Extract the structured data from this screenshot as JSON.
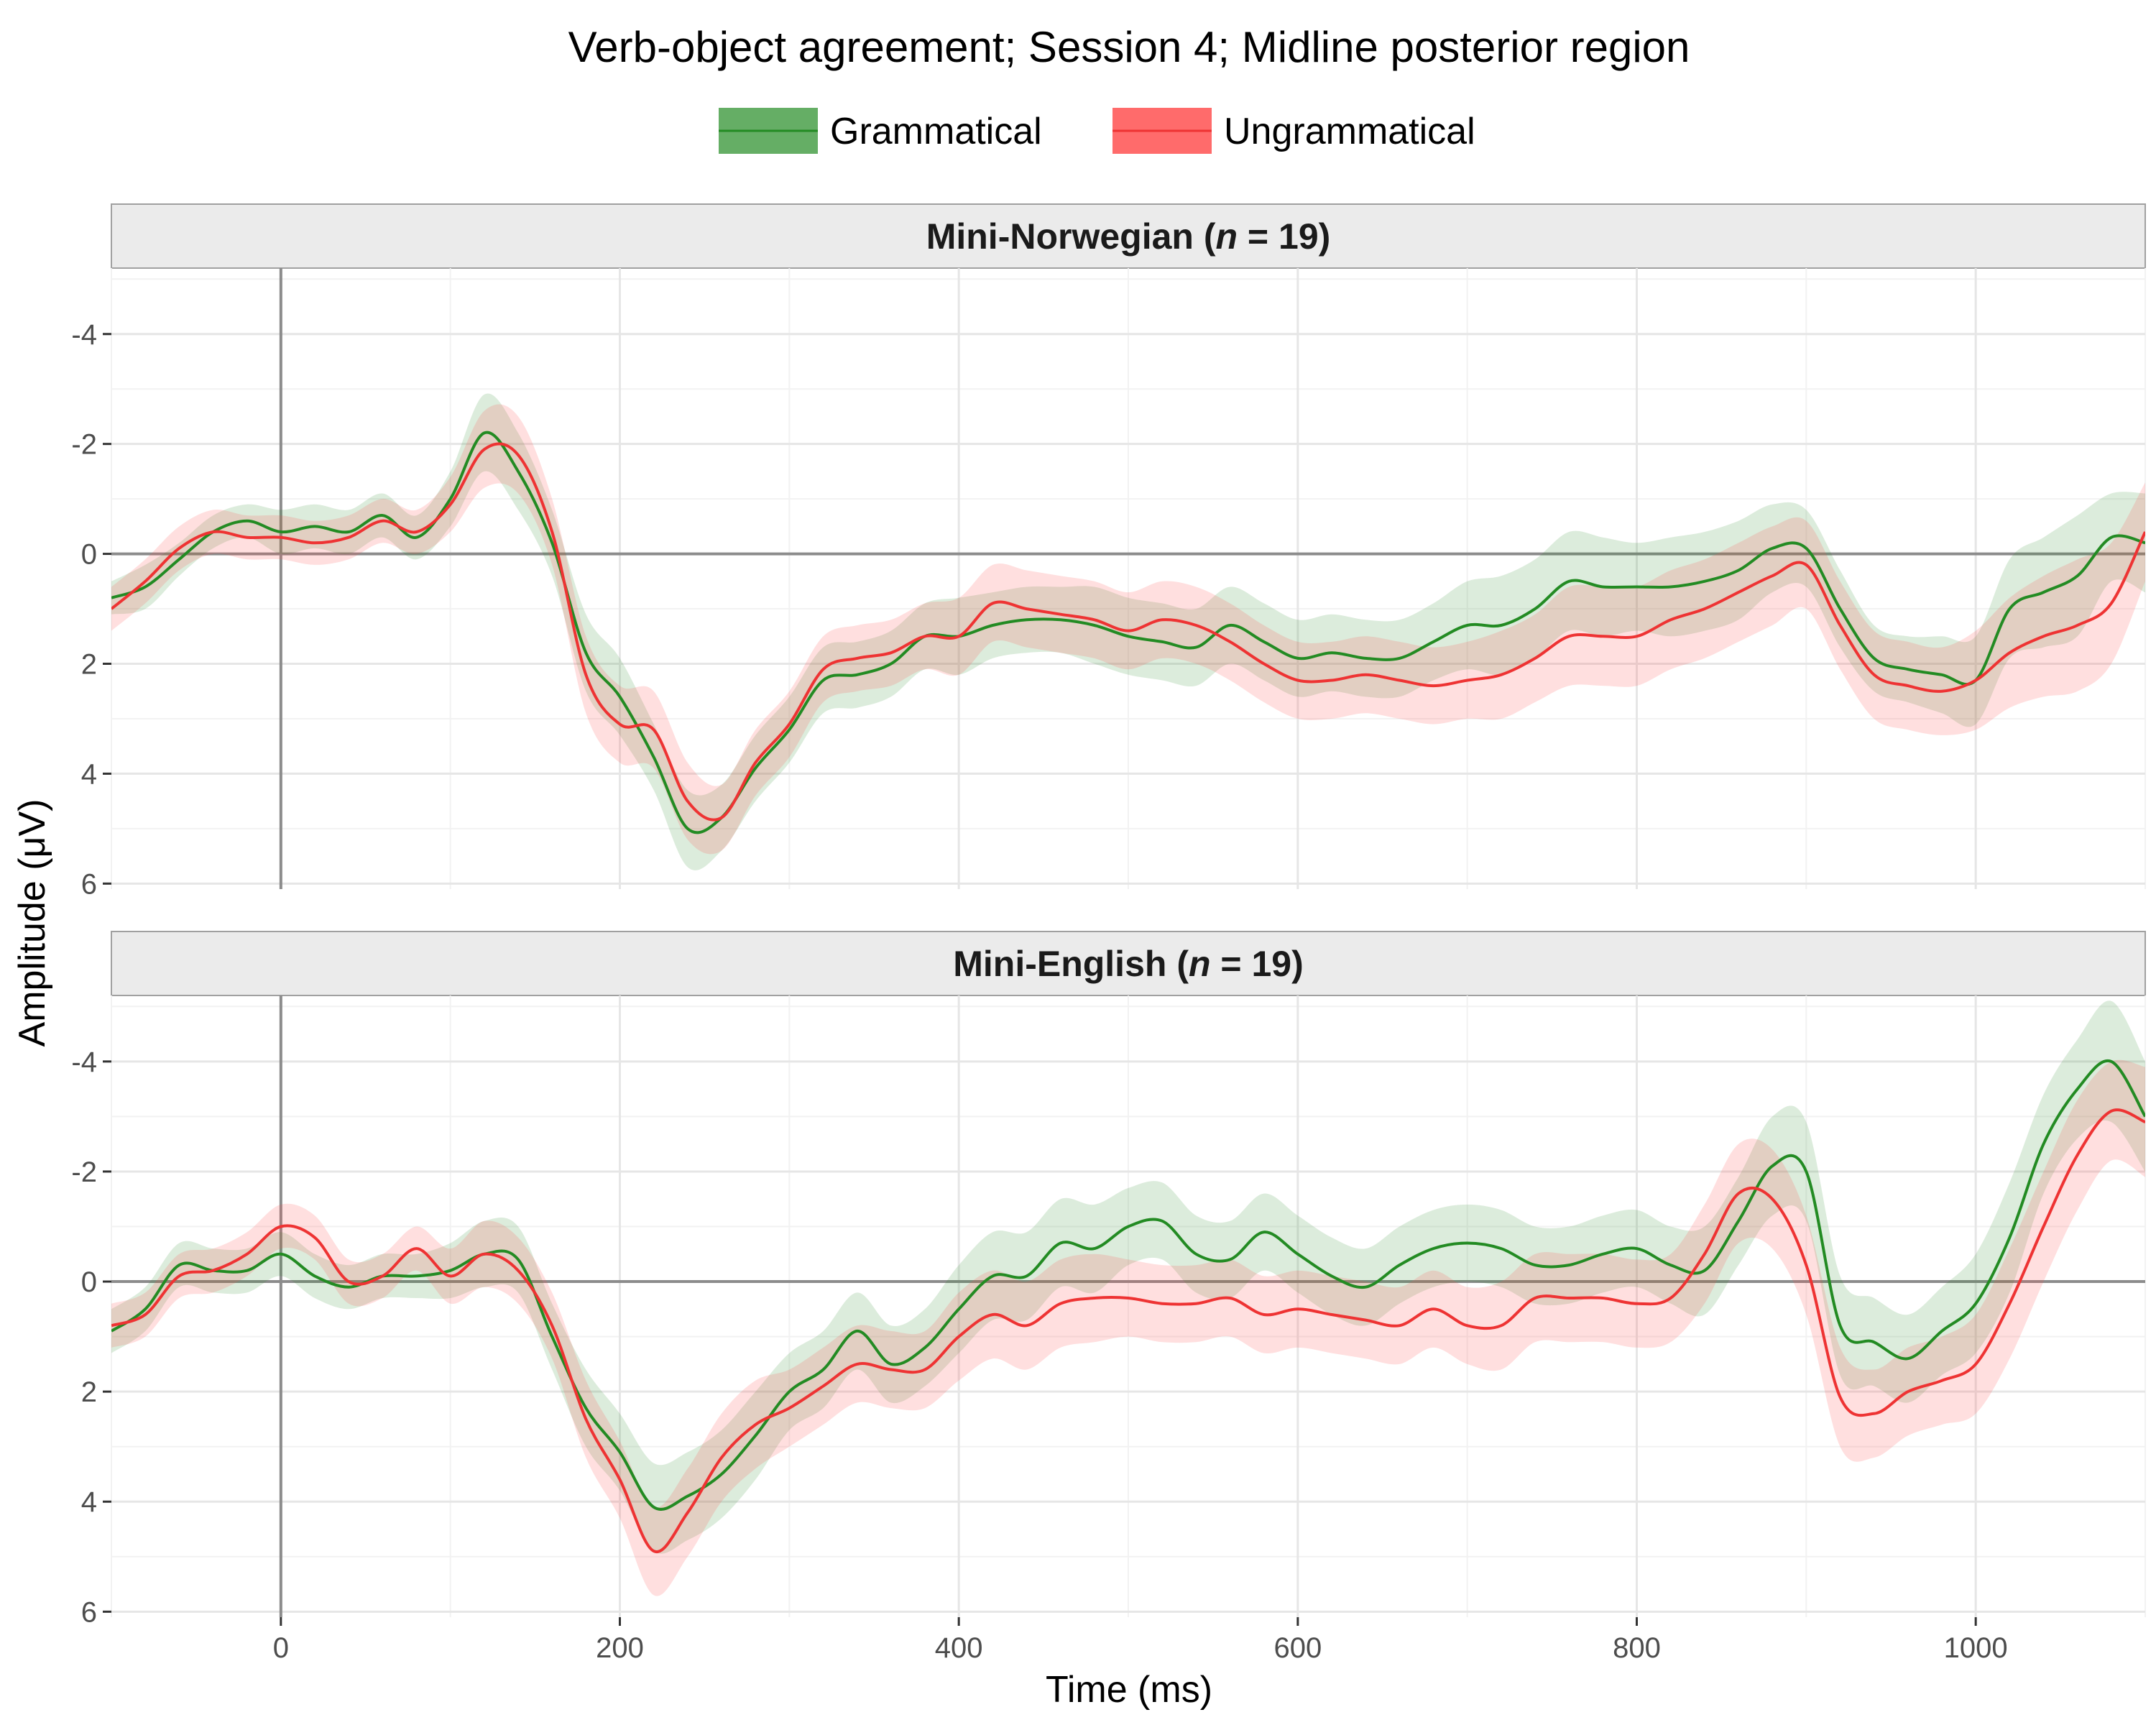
{
  "chart_data": {
    "type": "line",
    "title": "Verb-object agreement; Session 4; Midline posterior region",
    "xlabel": "Time (ms)",
    "ylabel": "Amplitude (μV)",
    "xlim": [
      -100,
      1100
    ],
    "ylim": [
      -5.2,
      6.1
    ],
    "y_reversed": true,
    "x_ticks": [
      0,
      200,
      400,
      600,
      800,
      1000
    ],
    "x_tick_labels": [
      "0",
      "200",
      "400",
      "600",
      "800",
      "1000"
    ],
    "y_ticks": [
      -4,
      -2,
      0,
      2,
      4,
      6
    ],
    "y_tick_labels": [
      "-4",
      "-2",
      "0",
      "2",
      "4",
      "6"
    ],
    "legend_position": "top",
    "legend": [
      {
        "label": "Grammatical",
        "color": "#238b23"
      },
      {
        "label": "Ungrammatical",
        "color": "#ee3333"
      }
    ],
    "colors": {
      "Grammatical": "#238b23",
      "Ungrammatical": "#ee3333"
    },
    "panels": [
      {
        "strip_pre": "Mini-Norwegian (",
        "strip_n": "n",
        "strip_post": " = 19)",
        "x": [
          -100,
          -80,
          -60,
          -40,
          -20,
          0,
          20,
          40,
          60,
          80,
          100,
          120,
          140,
          160,
          180,
          200,
          220,
          240,
          260,
          280,
          300,
          320,
          340,
          360,
          380,
          400,
          420,
          440,
          460,
          480,
          500,
          520,
          540,
          560,
          580,
          600,
          620,
          640,
          660,
          680,
          700,
          720,
          740,
          760,
          780,
          800,
          820,
          840,
          860,
          880,
          900,
          920,
          940,
          960,
          980,
          1000,
          1020,
          1040,
          1060,
          1080,
          1100
        ],
        "series": [
          {
            "name": "Grammatical",
            "values": [
              0.8,
              0.6,
              0.1,
              -0.4,
              -0.6,
              -0.4,
              -0.5,
              -0.4,
              -0.7,
              -0.3,
              -1.0,
              -2.2,
              -1.5,
              -0.2,
              1.8,
              2.6,
              3.7,
              5.0,
              4.8,
              3.9,
              3.2,
              2.3,
              2.2,
              2.0,
              1.5,
              1.5,
              1.3,
              1.2,
              1.2,
              1.3,
              1.5,
              1.6,
              1.7,
              1.3,
              1.6,
              1.9,
              1.8,
              1.9,
              1.9,
              1.6,
              1.3,
              1.3,
              1.0,
              0.5,
              0.6,
              0.6,
              0.6,
              0.5,
              0.3,
              -0.1,
              -0.1,
              1.0,
              1.9,
              2.1,
              2.2,
              2.3,
              1.0,
              0.7,
              0.4,
              -0.3,
              -0.2
            ],
            "lower": [
              0.5,
              0.2,
              -0.2,
              -0.7,
              -0.9,
              -0.8,
              -0.9,
              -0.8,
              -1.1,
              -0.7,
              -1.5,
              -2.9,
              -2.2,
              -0.8,
              1.1,
              1.9,
              3.1,
              4.3,
              4.2,
              3.3,
              2.6,
              1.7,
              1.6,
              1.4,
              0.9,
              0.8,
              0.7,
              0.6,
              0.6,
              0.6,
              0.8,
              0.9,
              1.0,
              0.6,
              0.9,
              1.2,
              1.1,
              1.2,
              1.2,
              0.9,
              0.5,
              0.4,
              0.1,
              -0.4,
              -0.3,
              -0.2,
              -0.3,
              -0.4,
              -0.6,
              -0.9,
              -0.8,
              0.3,
              1.3,
              1.5,
              1.5,
              1.5,
              0.1,
              -0.3,
              -0.7,
              -1.1,
              -1.1
            ],
            "upper": [
              1.1,
              1.0,
              0.4,
              -0.1,
              -0.3,
              0.0,
              -0.1,
              0.0,
              -0.3,
              0.1,
              -0.5,
              -1.5,
              -0.8,
              0.4,
              2.5,
              3.3,
              4.3,
              5.7,
              5.4,
              4.5,
              3.8,
              2.9,
              2.8,
              2.6,
              2.1,
              2.2,
              1.9,
              1.8,
              1.8,
              2.0,
              2.2,
              2.3,
              2.4,
              2.0,
              2.3,
              2.6,
              2.5,
              2.6,
              2.6,
              2.3,
              2.1,
              2.2,
              1.9,
              1.4,
              1.5,
              1.4,
              1.5,
              1.4,
              1.2,
              0.7,
              0.6,
              1.7,
              2.5,
              2.7,
              2.9,
              3.1,
              1.9,
              1.7,
              1.5,
              0.5,
              0.7
            ]
          },
          {
            "name": "Ungrammatical",
            "values": [
              1.0,
              0.5,
              -0.1,
              -0.4,
              -0.3,
              -0.3,
              -0.2,
              -0.3,
              -0.6,
              -0.4,
              -0.9,
              -1.9,
              -1.8,
              -0.4,
              2.2,
              3.1,
              3.2,
              4.5,
              4.8,
              3.8,
              3.1,
              2.1,
              1.9,
              1.8,
              1.5,
              1.5,
              0.9,
              1.0,
              1.1,
              1.2,
              1.4,
              1.2,
              1.3,
              1.6,
              2.0,
              2.3,
              2.3,
              2.2,
              2.3,
              2.4,
              2.3,
              2.2,
              1.9,
              1.5,
              1.5,
              1.5,
              1.2,
              1.0,
              0.7,
              0.4,
              0.2,
              1.3,
              2.2,
              2.4,
              2.5,
              2.3,
              1.8,
              1.5,
              1.3,
              0.9,
              -0.4
            ],
            "lower": [
              0.6,
              0.1,
              -0.5,
              -0.8,
              -0.7,
              -0.7,
              -0.6,
              -0.7,
              -1.0,
              -0.8,
              -1.4,
              -2.6,
              -2.5,
              -1.0,
              1.5,
              2.4,
              2.5,
              3.8,
              4.2,
              3.2,
              2.5,
              1.5,
              1.3,
              1.2,
              0.9,
              0.8,
              0.2,
              0.3,
              0.4,
              0.5,
              0.7,
              0.5,
              0.6,
              0.9,
              1.3,
              1.6,
              1.6,
              1.5,
              1.6,
              1.7,
              1.6,
              1.4,
              1.1,
              0.6,
              0.6,
              0.6,
              0.3,
              0.1,
              -0.2,
              -0.5,
              -0.6,
              0.5,
              1.4,
              1.6,
              1.7,
              1.4,
              0.8,
              0.4,
              0.1,
              -0.2,
              -1.3
            ],
            "upper": [
              1.4,
              0.9,
              0.3,
              0.0,
              0.1,
              0.1,
              0.2,
              0.1,
              -0.2,
              0.0,
              -0.4,
              -1.2,
              -1.1,
              0.2,
              2.9,
              3.8,
              3.9,
              5.2,
              5.4,
              4.4,
              3.7,
              2.7,
              2.5,
              2.4,
              2.1,
              2.2,
              1.6,
              1.7,
              1.8,
              1.9,
              2.1,
              1.9,
              2.0,
              2.3,
              2.7,
              3.0,
              3.0,
              2.9,
              3.0,
              3.1,
              3.0,
              3.0,
              2.7,
              2.4,
              2.4,
              2.4,
              2.1,
              1.9,
              1.6,
              1.3,
              1.0,
              2.1,
              3.0,
              3.2,
              3.3,
              3.2,
              2.8,
              2.6,
              2.5,
              2.0,
              0.5
            ]
          }
        ]
      },
      {
        "strip_pre": "Mini-English (",
        "strip_n": "n",
        "strip_post": " = 19)",
        "x": [
          -100,
          -80,
          -60,
          -40,
          -20,
          0,
          20,
          40,
          60,
          80,
          100,
          120,
          140,
          160,
          180,
          200,
          220,
          240,
          260,
          280,
          300,
          320,
          340,
          360,
          380,
          400,
          420,
          440,
          460,
          480,
          500,
          520,
          540,
          560,
          580,
          600,
          620,
          640,
          660,
          680,
          700,
          720,
          740,
          760,
          780,
          800,
          820,
          840,
          860,
          880,
          900,
          920,
          940,
          960,
          980,
          1000,
          1020,
          1040,
          1060,
          1080,
          1100
        ],
        "series": [
          {
            "name": "Grammatical",
            "values": [
              0.9,
              0.5,
              -0.3,
              -0.2,
              -0.2,
              -0.5,
              -0.1,
              0.1,
              -0.1,
              -0.1,
              -0.2,
              -0.5,
              -0.4,
              1.0,
              2.3,
              3.1,
              4.1,
              3.9,
              3.5,
              2.8,
              2.0,
              1.6,
              0.9,
              1.5,
              1.2,
              0.5,
              -0.1,
              -0.1,
              -0.7,
              -0.6,
              -1.0,
              -1.1,
              -0.5,
              -0.4,
              -0.9,
              -0.5,
              -0.1,
              0.1,
              -0.3,
              -0.6,
              -0.7,
              -0.6,
              -0.3,
              -0.3,
              -0.5,
              -0.6,
              -0.3,
              -0.2,
              -1.1,
              -2.1,
              -2.0,
              0.8,
              1.1,
              1.4,
              0.9,
              0.4,
              -0.8,
              -2.5,
              -3.5,
              -4.0,
              -3.0
            ],
            "lower": [
              0.5,
              0.1,
              -0.7,
              -0.6,
              -0.6,
              -0.9,
              -0.5,
              -0.3,
              -0.5,
              -0.5,
              -0.7,
              -1.1,
              -1.0,
              0.4,
              1.6,
              2.4,
              3.3,
              3.1,
              2.7,
              2.0,
              1.3,
              0.9,
              0.2,
              0.8,
              0.5,
              -0.3,
              -0.9,
              -0.9,
              -1.5,
              -1.4,
              -1.7,
              -1.8,
              -1.2,
              -1.1,
              -1.6,
              -1.2,
              -0.8,
              -0.6,
              -1.0,
              -1.3,
              -1.4,
              -1.3,
              -1.0,
              -1.0,
              -1.2,
              -1.3,
              -1.0,
              -1.0,
              -1.9,
              -3.0,
              -2.9,
              -0.1,
              0.3,
              0.6,
              0.1,
              -0.5,
              -1.8,
              -3.4,
              -4.4,
              -5.1,
              -4.0
            ],
            "upper": [
              1.3,
              0.9,
              0.1,
              0.2,
              0.2,
              -0.1,
              0.3,
              0.5,
              0.3,
              0.3,
              0.3,
              0.1,
              0.2,
              1.6,
              3.0,
              3.8,
              4.9,
              4.7,
              4.3,
              3.6,
              2.7,
              2.3,
              1.6,
              2.2,
              1.9,
              1.3,
              0.7,
              0.7,
              0.1,
              0.2,
              -0.3,
              -0.4,
              0.2,
              0.3,
              -0.2,
              0.2,
              0.6,
              0.8,
              0.4,
              0.1,
              0.0,
              0.1,
              0.4,
              0.4,
              0.2,
              0.1,
              0.4,
              0.6,
              -0.3,
              -1.2,
              -1.1,
              1.7,
              1.9,
              2.2,
              1.7,
              1.3,
              0.2,
              -1.6,
              -2.6,
              -2.9,
              -2.0
            ]
          },
          {
            "name": "Ungrammatical",
            "values": [
              0.8,
              0.6,
              -0.1,
              -0.2,
              -0.5,
              -1.0,
              -0.8,
              0.0,
              -0.1,
              -0.6,
              -0.1,
              -0.5,
              -0.2,
              0.8,
              2.5,
              3.6,
              4.9,
              4.2,
              3.2,
              2.6,
              2.3,
              1.9,
              1.5,
              1.6,
              1.6,
              1.0,
              0.6,
              0.8,
              0.4,
              0.3,
              0.3,
              0.4,
              0.4,
              0.3,
              0.6,
              0.5,
              0.6,
              0.7,
              0.8,
              0.5,
              0.8,
              0.8,
              0.3,
              0.3,
              0.3,
              0.4,
              0.3,
              -0.5,
              -1.6,
              -1.5,
              -0.3,
              2.1,
              2.4,
              2.0,
              1.8,
              1.5,
              0.4,
              -1.0,
              -2.3,
              -3.1,
              -2.9
            ],
            "lower": [
              0.4,
              0.2,
              -0.5,
              -0.6,
              -0.9,
              -1.4,
              -1.2,
              -0.4,
              -0.5,
              -1.0,
              -0.6,
              -1.1,
              -0.8,
              0.2,
              1.8,
              2.9,
              4.1,
              3.4,
              2.4,
              1.8,
              1.6,
              1.2,
              0.8,
              0.9,
              0.9,
              0.2,
              -0.2,
              0.0,
              -0.4,
              -0.5,
              -0.4,
              -0.3,
              -0.3,
              -0.4,
              -0.1,
              -0.2,
              -0.1,
              0.0,
              0.1,
              -0.2,
              0.1,
              0.0,
              -0.5,
              -0.5,
              -0.5,
              -0.4,
              -0.5,
              -1.4,
              -2.5,
              -2.4,
              -1.2,
              1.2,
              1.6,
              1.2,
              1.0,
              0.6,
              -0.6,
              -2.0,
              -3.3,
              -4.0,
              -3.9
            ],
            "upper": [
              1.2,
              1.0,
              0.3,
              0.2,
              -0.1,
              -0.6,
              -0.4,
              0.4,
              0.3,
              -0.2,
              0.4,
              0.1,
              0.4,
              1.4,
              3.2,
              4.3,
              5.7,
              5.0,
              4.0,
              3.4,
              3.0,
              2.6,
              2.2,
              2.3,
              2.3,
              1.8,
              1.4,
              1.6,
              1.2,
              1.1,
              1.0,
              1.1,
              1.1,
              1.0,
              1.3,
              1.2,
              1.3,
              1.4,
              1.5,
              1.2,
              1.5,
              1.6,
              1.1,
              1.1,
              1.1,
              1.2,
              1.1,
              0.4,
              -0.7,
              -0.6,
              0.6,
              3.0,
              3.2,
              2.8,
              2.6,
              2.4,
              1.4,
              0.0,
              -1.3,
              -2.2,
              -1.9
            ]
          }
        ]
      }
    ]
  }
}
